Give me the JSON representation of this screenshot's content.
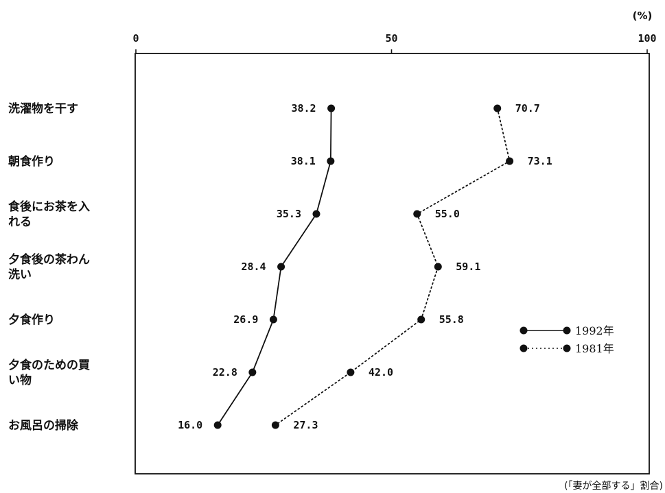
{
  "chart_data": {
    "type": "line",
    "orientation": "horizontal",
    "unit": "(%)",
    "note": "(「妻が全部する」割合)",
    "xlim": [
      0,
      100
    ],
    "xticks": [
      0,
      50,
      100
    ],
    "categories": [
      [
        "洗濯物を干す"
      ],
      [
        "朝食作り"
      ],
      [
        "食後にお茶を入",
        "れる"
      ],
      [
        "夕食後の茶わん",
        "洗い"
      ],
      [
        "夕食作り"
      ],
      [
        "夕食のための買",
        "い物"
      ],
      [
        "お風呂の掃除"
      ]
    ],
    "series": [
      {
        "name": "1992年",
        "line_style": "solid",
        "values": [
          38.2,
          38.1,
          35.3,
          28.4,
          26.9,
          22.8,
          16.0
        ],
        "labels": [
          "38.2",
          "38.1",
          "35.3",
          "28.4",
          "26.9",
          "22.8",
          "16.0"
        ]
      },
      {
        "name": "1981年",
        "line_style": "dotted",
        "values": [
          70.7,
          73.1,
          55.0,
          59.1,
          55.8,
          42.0,
          27.3
        ],
        "labels": [
          "70.7",
          "73.1",
          "55.0",
          "59.1",
          "55.8",
          "42.0",
          "27.3"
        ]
      }
    ],
    "legend_position": "right",
    "grid": false,
    "colors": {
      "ink": "#111111",
      "background": "#ffffff"
    }
  }
}
